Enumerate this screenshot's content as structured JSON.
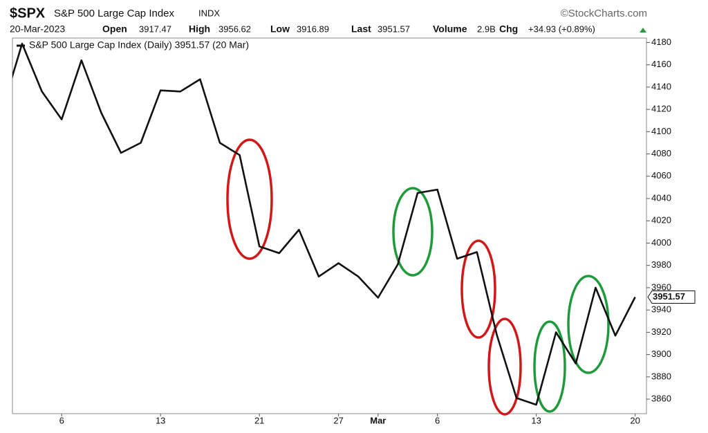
{
  "header": {
    "symbol": "$SPX",
    "name": "S&P 500 Large Cap Index",
    "exchange": "INDX",
    "credit": "©StockCharts.com",
    "date": "20-Mar-2023",
    "open_label": "Open",
    "open": "3917.47",
    "high_label": "High",
    "high": "3956.62",
    "low_label": "Low",
    "low": "3916.89",
    "last_label": "Last",
    "last": "3951.57",
    "volume_label": "Volume",
    "volume": "2.9B",
    "chg_label": "Chg",
    "chg": "+34.93 (+0.89%)"
  },
  "chart_data": {
    "type": "line",
    "categories": [
      null,
      null,
      null,
      "6",
      null,
      null,
      null,
      null,
      "13",
      null,
      null,
      null,
      null,
      "21",
      null,
      null,
      null,
      "27",
      null,
      "Mar",
      null,
      null,
      "6",
      null,
      null,
      null,
      null,
      "13",
      null,
      null,
      null,
      null,
      "20"
    ],
    "series": [
      {
        "name": "S&P 500 Large Cap Index (Daily) 3951.57 (20 Mar)",
        "color": "#111111",
        "values": [
          4120,
          4179,
          4136,
          4111,
          4164,
          4117,
          4081,
          4090,
          4137,
          4136,
          4147,
          4090,
          4079,
          3997,
          3991,
          4012,
          3970,
          3982,
          3970,
          3951,
          3981,
          4045,
          4048,
          3986,
          3992,
          3918,
          3861,
          3855,
          3920,
          3892,
          3960,
          3917,
          3951.57
        ]
      }
    ],
    "ylim": [
      3847,
      4184
    ],
    "yticks": [
      3860,
      3880,
      3900,
      3920,
      3940,
      3960,
      3980,
      4000,
      4020,
      4040,
      4060,
      4080,
      4100,
      4120,
      4140,
      4160,
      4180
    ],
    "grid": false
  }
}
